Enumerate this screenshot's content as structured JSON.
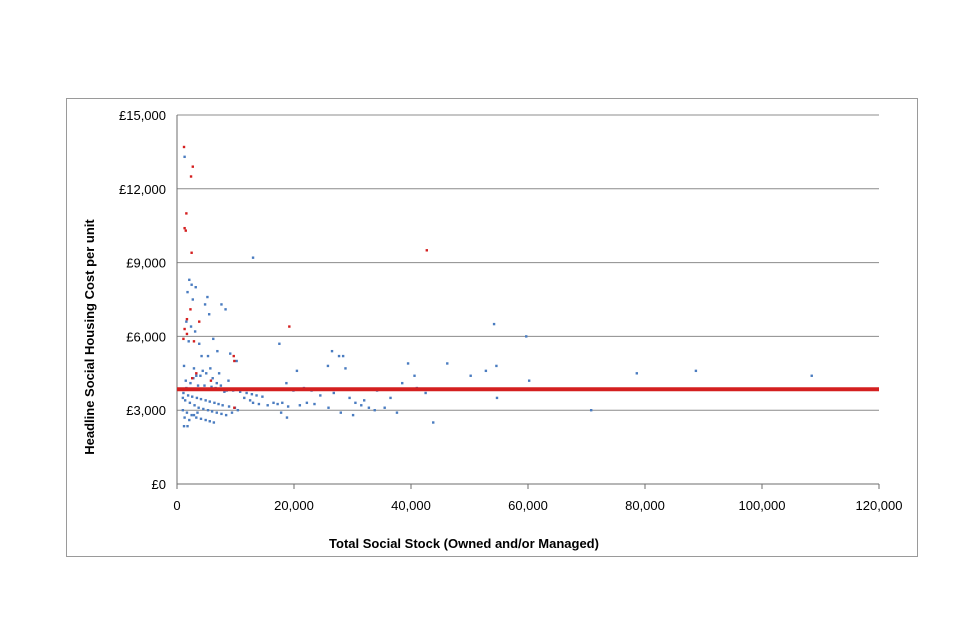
{
  "chart_data": {
    "type": "scatter",
    "xlabel": "Total Social Stock (Owned and/or Managed)",
    "ylabel": "Headline Social Housing Cost per unit",
    "xlim": [
      0,
      120000
    ],
    "ylim": [
      0,
      15000
    ],
    "x_ticks": [
      0,
      20000,
      40000,
      60000,
      80000,
      100000,
      120000
    ],
    "x_tick_labels": [
      "0",
      "20,000",
      "40,000",
      "60,000",
      "80,000",
      "100,000",
      "120,000"
    ],
    "y_ticks": [
      0,
      3000,
      6000,
      9000,
      12000,
      15000
    ],
    "y_tick_labels": [
      "£0",
      "£3,000",
      "£6,000",
      "£9,000",
      "£12,000",
      "£15,000"
    ],
    "grid": "horizontal",
    "reference_line": {
      "y": 3850,
      "color": "#d42020"
    },
    "colors": {
      "main": "#4a7cc0",
      "highlight": "#d42020",
      "grid": "#8c8c8c"
    },
    "series": [
      {
        "color": "#4a7cc0",
        "points": [
          [
            1300,
            13300
          ],
          [
            2100,
            8300
          ],
          [
            2500,
            8100
          ],
          [
            1800,
            7800
          ],
          [
            3200,
            8000
          ],
          [
            2700,
            7500
          ],
          [
            5200,
            7600
          ],
          [
            4800,
            7300
          ],
          [
            7600,
            7300
          ],
          [
            8300,
            7100
          ],
          [
            1600,
            6600
          ],
          [
            2400,
            6400
          ],
          [
            3100,
            6200
          ],
          [
            5500,
            6900
          ],
          [
            6200,
            5900
          ],
          [
            2000,
            5800
          ],
          [
            3800,
            5700
          ],
          [
            6900,
            5400
          ],
          [
            4200,
            5200
          ],
          [
            5300,
            5200
          ],
          [
            9100,
            5300
          ],
          [
            10200,
            5000
          ],
          [
            1200,
            4800
          ],
          [
            2900,
            4700
          ],
          [
            4400,
            4600
          ],
          [
            5700,
            4700
          ],
          [
            7200,
            4500
          ],
          [
            3300,
            4400
          ],
          [
            6100,
            4300
          ],
          [
            8800,
            4200
          ],
          [
            1500,
            4200
          ],
          [
            2300,
            4100
          ],
          [
            3600,
            4000
          ],
          [
            4700,
            4000
          ],
          [
            5900,
            3950
          ],
          [
            6600,
            3900
          ],
          [
            7300,
            3850
          ],
          [
            8500,
            3800
          ],
          [
            9600,
            3800
          ],
          [
            10800,
            3750
          ],
          [
            11900,
            3700
          ],
          [
            12800,
            3650
          ],
          [
            13600,
            3600
          ],
          [
            14600,
            3550
          ],
          [
            1100,
            3700
          ],
          [
            1900,
            3600
          ],
          [
            2600,
            3550
          ],
          [
            3400,
            3500
          ],
          [
            4100,
            3450
          ],
          [
            4900,
            3400
          ],
          [
            5600,
            3350
          ],
          [
            6400,
            3300
          ],
          [
            7100,
            3250
          ],
          [
            7800,
            3200
          ],
          [
            8900,
            3150
          ],
          [
            9900,
            3100
          ],
          [
            1400,
            3400
          ],
          [
            2200,
            3300
          ],
          [
            3000,
            3200
          ],
          [
            3700,
            3100
          ],
          [
            4500,
            3050
          ],
          [
            5300,
            3000
          ],
          [
            6000,
            2950
          ],
          [
            6800,
            2900
          ],
          [
            7600,
            2850
          ],
          [
            8400,
            2800
          ],
          [
            9400,
            2900
          ],
          [
            10400,
            3000
          ],
          [
            1000,
            3000
          ],
          [
            1700,
            2900
          ],
          [
            2500,
            2800
          ],
          [
            3300,
            2700
          ],
          [
            4100,
            2650
          ],
          [
            4900,
            2600
          ],
          [
            5600,
            2550
          ],
          [
            6300,
            2500
          ],
          [
            1300,
            2700
          ],
          [
            2100,
            2600
          ],
          [
            2900,
            2800
          ],
          [
            3500,
            2900
          ],
          [
            1200,
            2350
          ],
          [
            1800,
            2350
          ],
          [
            1000,
            3500
          ],
          [
            1600,
            3900
          ],
          [
            2800,
            4300
          ],
          [
            4000,
            4400
          ],
          [
            5000,
            4500
          ],
          [
            6800,
            4100
          ],
          [
            7500,
            4000
          ],
          [
            8100,
            3750
          ],
          [
            11500,
            3500
          ],
          [
            12500,
            3400
          ],
          [
            13000,
            3300
          ],
          [
            14000,
            3250
          ],
          [
            15500,
            3200
          ],
          [
            16500,
            3300
          ],
          [
            17200,
            3250
          ],
          [
            18000,
            3300
          ],
          [
            19000,
            3150
          ],
          [
            21000,
            3200
          ],
          [
            22200,
            3300
          ],
          [
            23500,
            3250
          ],
          [
            13000,
            9200
          ],
          [
            17500,
            5700
          ],
          [
            18700,
            4100
          ],
          [
            20500,
            4600
          ],
          [
            26500,
            5400
          ],
          [
            27700,
            5200
          ],
          [
            28400,
            5200
          ],
          [
            28800,
            4700
          ],
          [
            25800,
            4800
          ],
          [
            23000,
            3800
          ],
          [
            24500,
            3600
          ],
          [
            26800,
            3700
          ],
          [
            29500,
            3500
          ],
          [
            30500,
            3300
          ],
          [
            31500,
            3200
          ],
          [
            32800,
            3100
          ],
          [
            33800,
            3000
          ],
          [
            35500,
            3100
          ],
          [
            36500,
            3500
          ],
          [
            38500,
            4100
          ],
          [
            39500,
            4900
          ],
          [
            40600,
            4400
          ],
          [
            41000,
            3900
          ],
          [
            42500,
            3700
          ],
          [
            43800,
            2500
          ],
          [
            46200,
            4900
          ],
          [
            50200,
            4400
          ],
          [
            52800,
            4600
          ],
          [
            54200,
            6500
          ],
          [
            54600,
            4800
          ],
          [
            54700,
            3500
          ],
          [
            59700,
            6000
          ],
          [
            60200,
            4200
          ],
          [
            70800,
            3000
          ],
          [
            78600,
            4500
          ],
          [
            88700,
            4600
          ],
          [
            108500,
            4400
          ],
          [
            17800,
            2900
          ],
          [
            18800,
            2700
          ],
          [
            19900,
            3800
          ],
          [
            21700,
            3900
          ],
          [
            25900,
            3100
          ],
          [
            28000,
            2900
          ],
          [
            30100,
            2800
          ],
          [
            32000,
            3400
          ],
          [
            34200,
            3800
          ],
          [
            37600,
            2900
          ]
        ]
      },
      {
        "color": "#d42020",
        "points": [
          [
            1200,
            13700
          ],
          [
            2700,
            12900
          ],
          [
            2400,
            12500
          ],
          [
            1600,
            11000
          ],
          [
            1300,
            10400
          ],
          [
            1500,
            10300
          ],
          [
            2500,
            9400
          ],
          [
            2300,
            7100
          ],
          [
            1700,
            6700
          ],
          [
            3800,
            6600
          ],
          [
            1300,
            6300
          ],
          [
            1700,
            6100
          ],
          [
            2900,
            5800
          ],
          [
            3300,
            4500
          ],
          [
            9700,
            5200
          ],
          [
            9800,
            5000
          ],
          [
            19200,
            6400
          ],
          [
            42700,
            9500
          ],
          [
            1100,
            5900
          ],
          [
            2600,
            4300
          ],
          [
            5800,
            4200
          ],
          [
            9800,
            3100
          ]
        ]
      }
    ]
  }
}
